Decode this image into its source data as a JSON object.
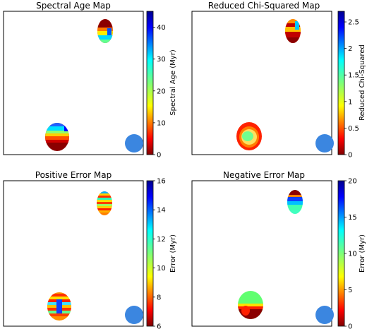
{
  "chart_data": [
    {
      "type": "heatmap",
      "title": "Spectral Age Map",
      "colorbar_label": "Spectral Age (Myr)",
      "colorbar_range": [
        0,
        45
      ],
      "colorbar_ticks": [
        0,
        10,
        20,
        30,
        40
      ],
      "colormap": "jet_r",
      "grid": false,
      "beam_color": "#3b86e0"
    },
    {
      "type": "heatmap",
      "title": "Reduced Chi-Squared Map",
      "colorbar_label": "Reduced Chi-Squared",
      "colorbar_range": [
        0,
        2.7
      ],
      "colorbar_ticks": [
        0,
        0.5,
        1,
        1.5,
        2,
        2.5
      ],
      "colormap": "jet_r",
      "grid": false,
      "beam_color": "#3b86e0"
    },
    {
      "type": "heatmap",
      "title": "Positive Error Map",
      "colorbar_label": "Error (Myr)",
      "colorbar_range": [
        6,
        16
      ],
      "colorbar_ticks": [
        6,
        8,
        10,
        12,
        14,
        16
      ],
      "colormap": "jet_r",
      "grid": false,
      "beam_color": "#3b86e0"
    },
    {
      "type": "heatmap",
      "title": "Negative Error Map",
      "colorbar_label": "Error (Myr)",
      "colorbar_range": [
        0,
        20
      ],
      "colorbar_ticks": [
        0,
        5,
        10,
        15,
        20
      ],
      "colormap": "jet_r",
      "grid": false,
      "beam_color": "#3b86e0"
    }
  ]
}
